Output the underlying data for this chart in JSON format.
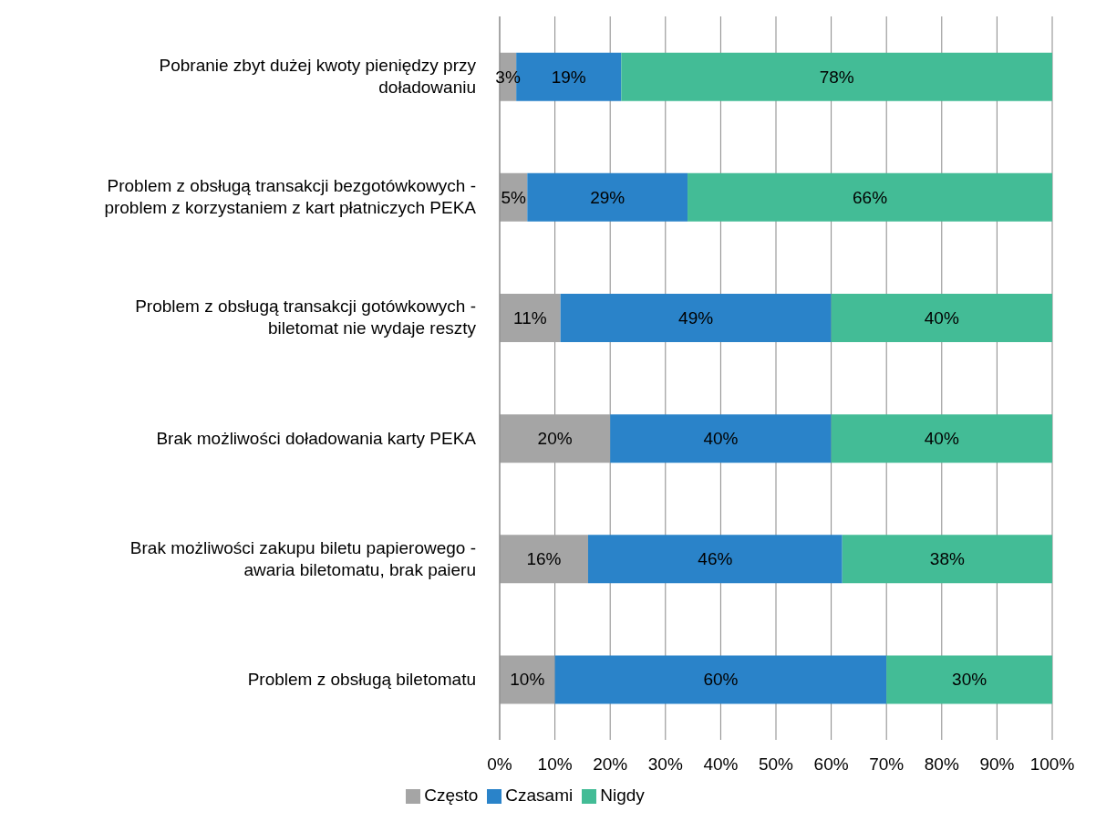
{
  "chart_data": {
    "type": "bar",
    "orientation": "horizontal",
    "stacked": true,
    "categories": [
      "Pobranie zbyt dużej kwoty pieniędzy przy doładowaniu",
      "Problem z obsługą transakcji bezgotówkowych - problem z korzystaniem z kart płatniczych PEKA",
      "Problem z obsługą transakcji gotówkowych - biletomat nie wydaje reszty",
      "Brak możliwości doładowania karty PEKA",
      "Brak możliwości zakupu biletu papierowego - awaria biletomatu, brak paieru",
      "Problem z obsługą biletomatu"
    ],
    "series": [
      {
        "name": "Często",
        "color": "#a5a5a5",
        "values": [
          3,
          5,
          11,
          20,
          16,
          10
        ],
        "value_labels": [
          "3%",
          "5%",
          "11%",
          "20%",
          "16%",
          "10%"
        ]
      },
      {
        "name": "Czasami",
        "color": "#2a83c9",
        "values": [
          19,
          29,
          49,
          40,
          46,
          60
        ],
        "value_labels": [
          "19%",
          "29%",
          "49%",
          "40%",
          "46%",
          "60%"
        ]
      },
      {
        "name": "Nigdy",
        "color": "#43bc96",
        "values": [
          78,
          66,
          40,
          40,
          38,
          30
        ],
        "value_labels": [
          "78%",
          "66%",
          "40%",
          "40%",
          "38%",
          "30%"
        ]
      }
    ],
    "xlim": [
      0,
      100
    ],
    "xticks": [
      {
        "value": 0,
        "label": "0%"
      },
      {
        "value": 10,
        "label": "10%"
      },
      {
        "value": 20,
        "label": "20%"
      },
      {
        "value": 30,
        "label": "30%"
      },
      {
        "value": 40,
        "label": "40%"
      },
      {
        "value": 50,
        "label": "50%"
      },
      {
        "value": 60,
        "label": "60%"
      },
      {
        "value": 70,
        "label": "70%"
      },
      {
        "value": 80,
        "label": "80%"
      },
      {
        "value": 90,
        "label": "90%"
      },
      {
        "value": 100,
        "label": "100%"
      }
    ],
    "grid": "x",
    "legend": "bottom"
  }
}
